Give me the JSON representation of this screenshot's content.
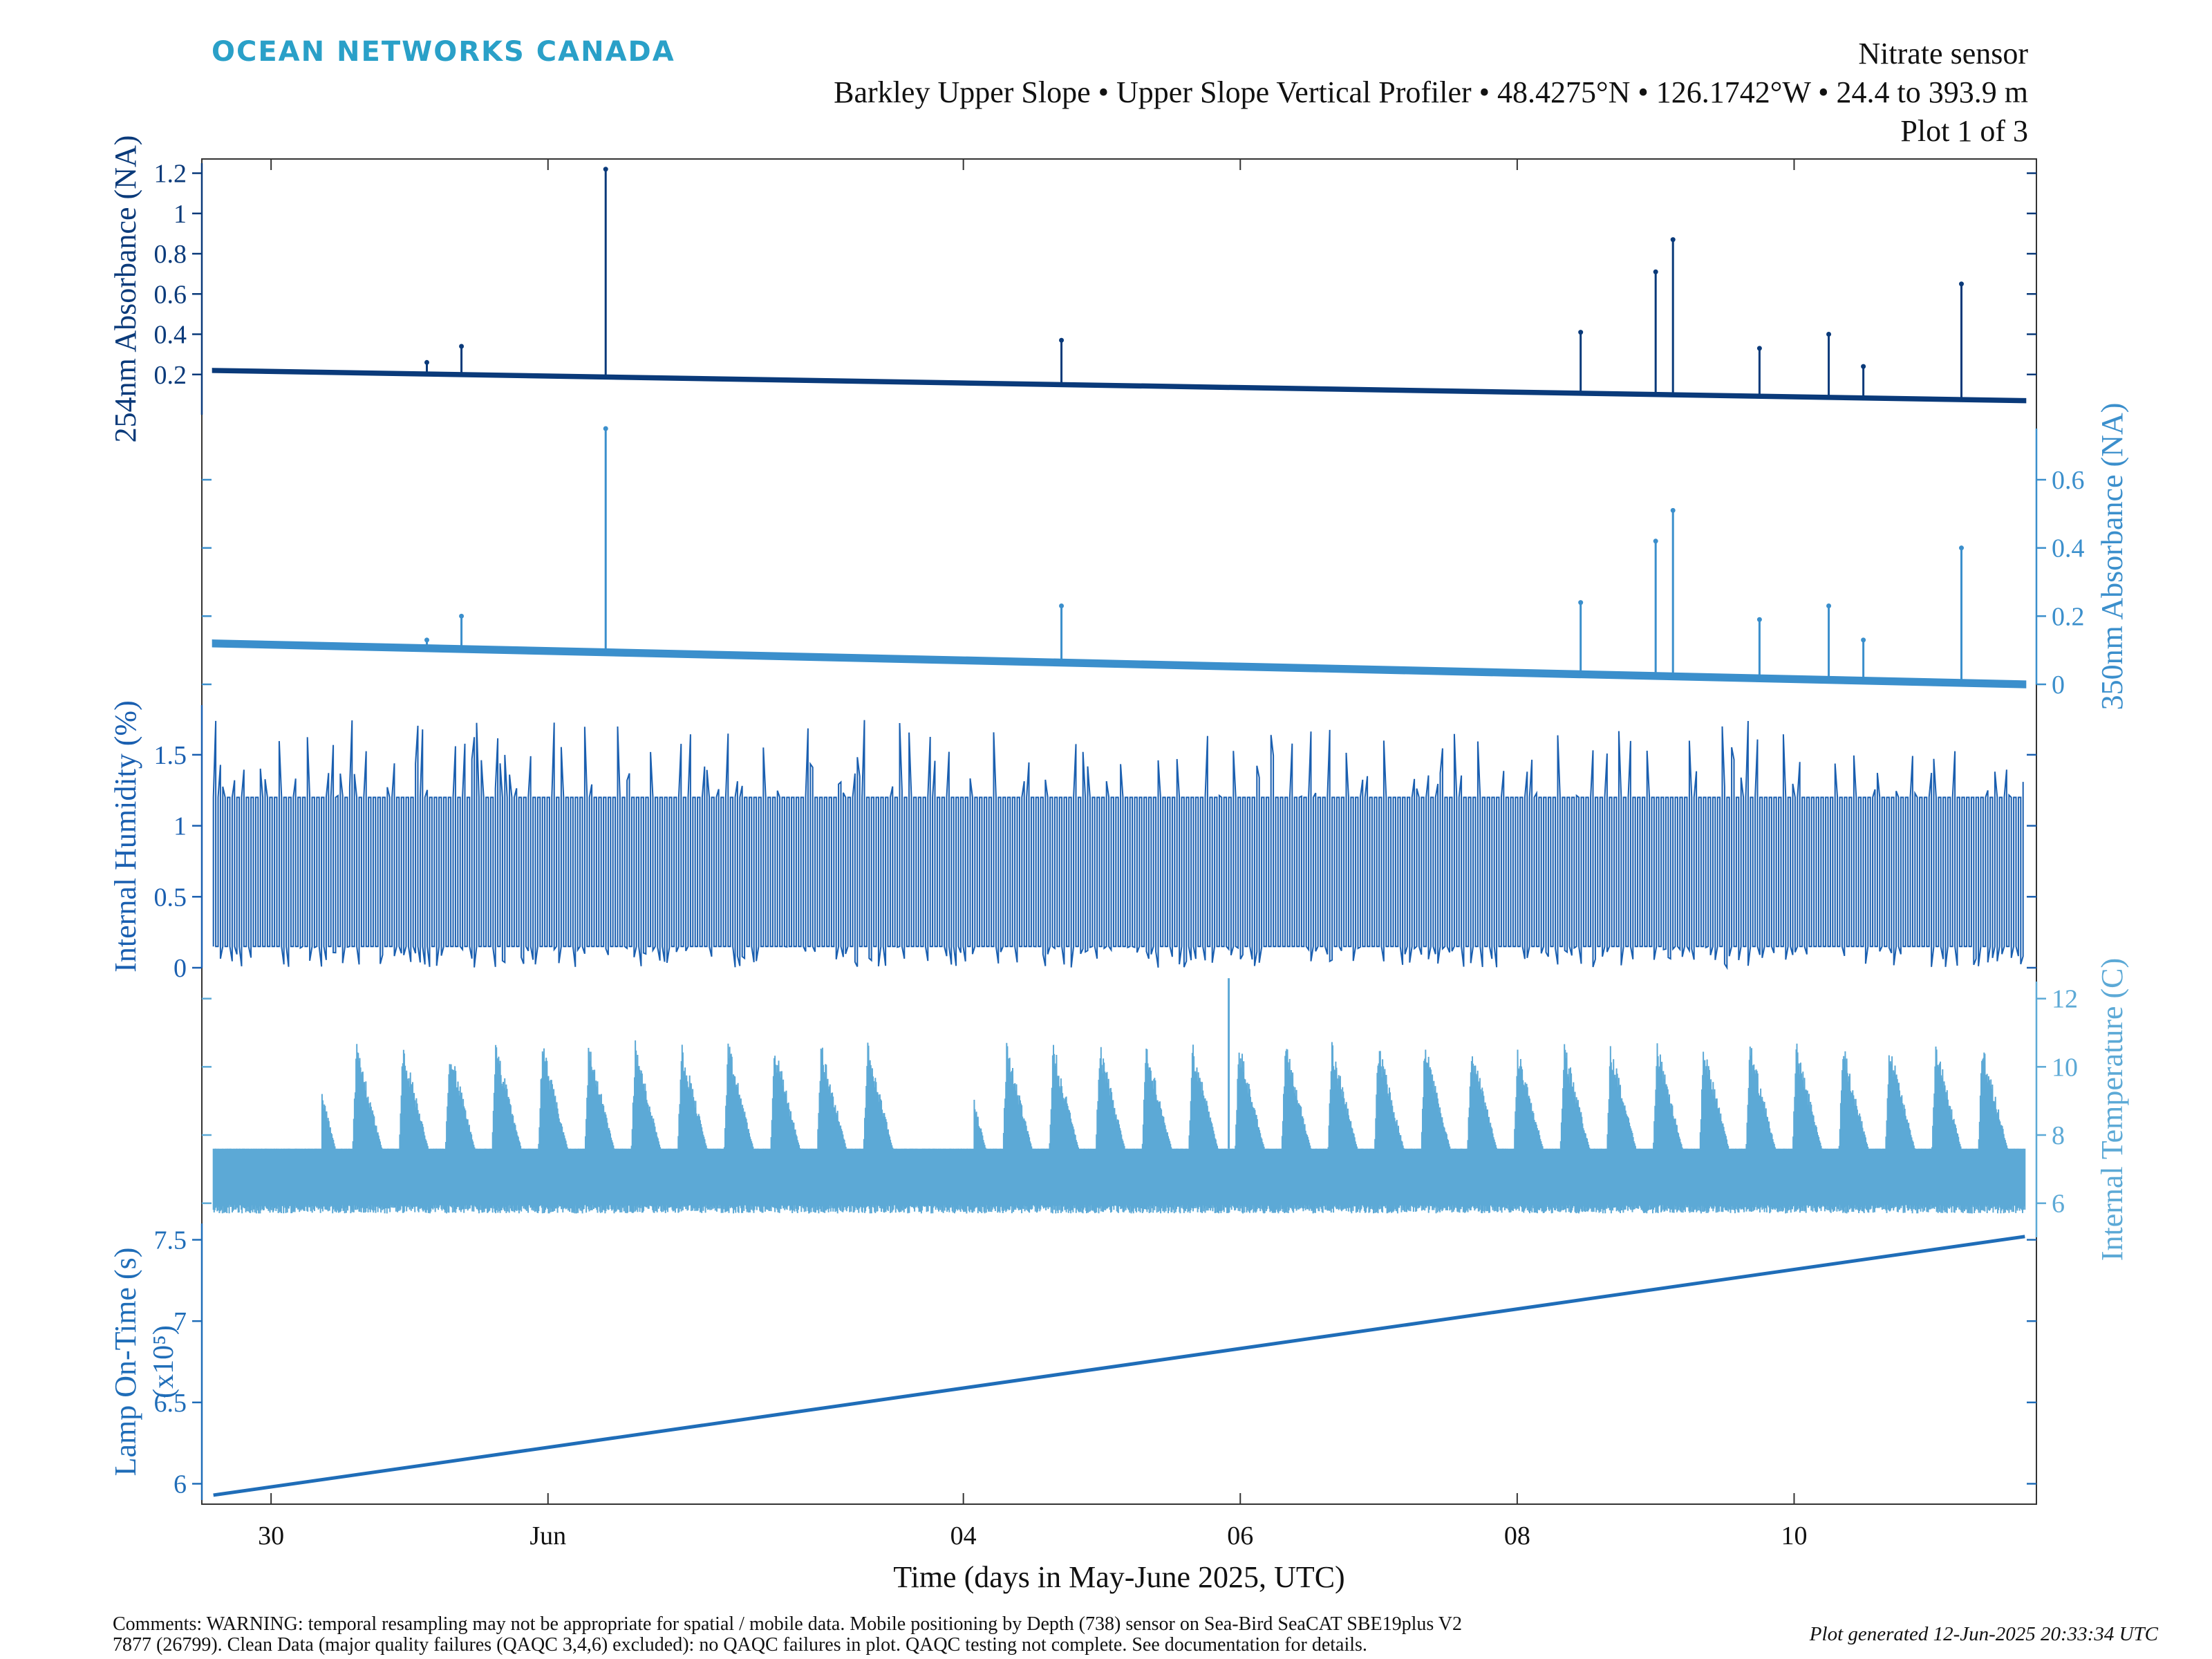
{
  "header": {
    "brand": "OCEAN NETWORKS CANADA",
    "sensor": "Nitrate sensor",
    "location": "Barkley Upper Slope • Upper Slope Vertical Profiler • 48.4275°N • 126.1742°W • 24.4 to 393.9 m",
    "plot_number": "Plot 1 of 3"
  },
  "footer": {
    "comment_line1": "Comments: WARNING: temporal resampling may not be appropriate for spatial / mobile data. Mobile positioning by Depth (738) sensor on Sea-Bird SeaCAT SBE19plus V2",
    "comment_line2": "7877 (26799). Clean Data (major quality failures (QAQC 3,4,6) excluded): no QAQC failures in plot. QAQC testing not complete. See documentation for details.",
    "generated": "Plot generated 12-Jun-2025 20:33:34 UTC"
  },
  "colors": {
    "abs254": "#0a3a7a",
    "abs350": "#3b8fcc",
    "humidity": "#1a5fb0",
    "temperature": "#5ca9d6",
    "lamp": "#1f6db8",
    "axis": "#333333"
  },
  "chart_data": {
    "type": "line",
    "xlabel": "Time (days in May-June 2025, UTC)",
    "x_range": [
      "2025-05-29T12:00",
      "2025-06-11T18:00"
    ],
    "x_ticks": [
      {
        "date": "2025-05-30",
        "label": "30"
      },
      {
        "date": "2025-06-01",
        "label": "Jun"
      },
      {
        "date": "2025-06-04",
        "label": "04"
      },
      {
        "date": "2025-06-06",
        "label": "06"
      },
      {
        "date": "2025-06-08",
        "label": "08"
      },
      {
        "date": "2025-06-10",
        "label": "10"
      }
    ],
    "data_start": "2025-05-29T14:00",
    "data_end": "2025-06-11T16:00",
    "series": [
      {
        "key": "abs254",
        "ylabel": "254nm Absorbance (NA)",
        "axis_side": "left",
        "ylim": [
          0.0,
          1.25
        ],
        "yticks": [
          0.2,
          0.4,
          0.6,
          0.8,
          1.0,
          1.2
        ],
        "ytick_labels": [
          "0.2",
          "0.4",
          "0.6",
          "0.8",
          "1",
          "1.2"
        ],
        "baseline_start": 0.22,
        "baseline_end": 0.07,
        "band_width": 0.012,
        "spikes": [
          {
            "date": "2025-05-31T03:00",
            "value": 0.26
          },
          {
            "date": "2025-05-31T09:00",
            "value": 0.34
          },
          {
            "date": "2025-06-01T10:00",
            "value": 1.22
          },
          {
            "date": "2025-06-04T17:00",
            "value": 0.37
          },
          {
            "date": "2025-06-08T11:00",
            "value": 0.41
          },
          {
            "date": "2025-06-09T00:00",
            "value": 0.71
          },
          {
            "date": "2025-06-09T03:00",
            "value": 0.87
          },
          {
            "date": "2025-06-09T18:00",
            "value": 0.33
          },
          {
            "date": "2025-06-10T06:00",
            "value": 0.4
          },
          {
            "date": "2025-06-10T12:00",
            "value": 0.24
          },
          {
            "date": "2025-06-11T05:00",
            "value": 0.65
          }
        ]
      },
      {
        "key": "abs350",
        "ylabel": "350nm Absorbance (NA)",
        "axis_side": "right",
        "ylim": [
          0.0,
          0.75
        ],
        "yticks": [
          0.0,
          0.2,
          0.4,
          0.6
        ],
        "ytick_labels": [
          "0",
          "0.2",
          "0.4",
          "0.6"
        ],
        "baseline_start": 0.12,
        "baseline_end": 0.0,
        "band_width": 0.015,
        "spikes": [
          {
            "date": "2025-05-31T03:00",
            "value": 0.13
          },
          {
            "date": "2025-05-31T09:00",
            "value": 0.2
          },
          {
            "date": "2025-06-01T10:00",
            "value": 0.75
          },
          {
            "date": "2025-06-04T17:00",
            "value": 0.23
          },
          {
            "date": "2025-06-08T11:00",
            "value": 0.24
          },
          {
            "date": "2025-06-09T00:00",
            "value": 0.42
          },
          {
            "date": "2025-06-09T03:00",
            "value": 0.51
          },
          {
            "date": "2025-06-09T18:00",
            "value": 0.19
          },
          {
            "date": "2025-06-10T06:00",
            "value": 0.23
          },
          {
            "date": "2025-06-10T12:00",
            "value": 0.13
          },
          {
            "date": "2025-06-11T05:00",
            "value": 0.4
          }
        ]
      },
      {
        "key": "humidity",
        "ylabel": "Internal Humidity (%)",
        "axis_side": "left",
        "ylim": [
          0.0,
          1.85
        ],
        "yticks": [
          0.0,
          0.5,
          1.0,
          1.5
        ],
        "ytick_labels": [
          "0",
          "0.5",
          "1",
          "1.5"
        ],
        "oscillation_low": 0.0,
        "oscillation_high": 1.5,
        "dense_low": 0.15,
        "dense_high": 1.2
      },
      {
        "key": "temperature",
        "ylabel": "Internal Temperature (C)",
        "axis_side": "right",
        "ylim": [
          5.0,
          12.5
        ],
        "yticks": [
          6,
          8,
          10,
          12
        ],
        "ytick_labels": [
          "6",
          "8",
          "10",
          "12"
        ],
        "daily_cycles": 3,
        "baseline_low": 5.7,
        "baseline_high": 7.6,
        "peak_high": 10.8,
        "max_spike": {
          "date": "2025-06-05T22:00",
          "value": 12.6
        }
      },
      {
        "key": "lamp",
        "ylabel": "Lamp On-Time (s)",
        "ylabel_multiplier": "(x10⁵)",
        "axis_side": "left",
        "ylim": [
          5.9,
          7.6
        ],
        "yticks": [
          6.0,
          6.5,
          7.0,
          7.5
        ],
        "ytick_labels": [
          "6",
          "6.5",
          "7",
          "7.5"
        ],
        "start_value": 5.93,
        "end_value": 7.52
      }
    ]
  }
}
